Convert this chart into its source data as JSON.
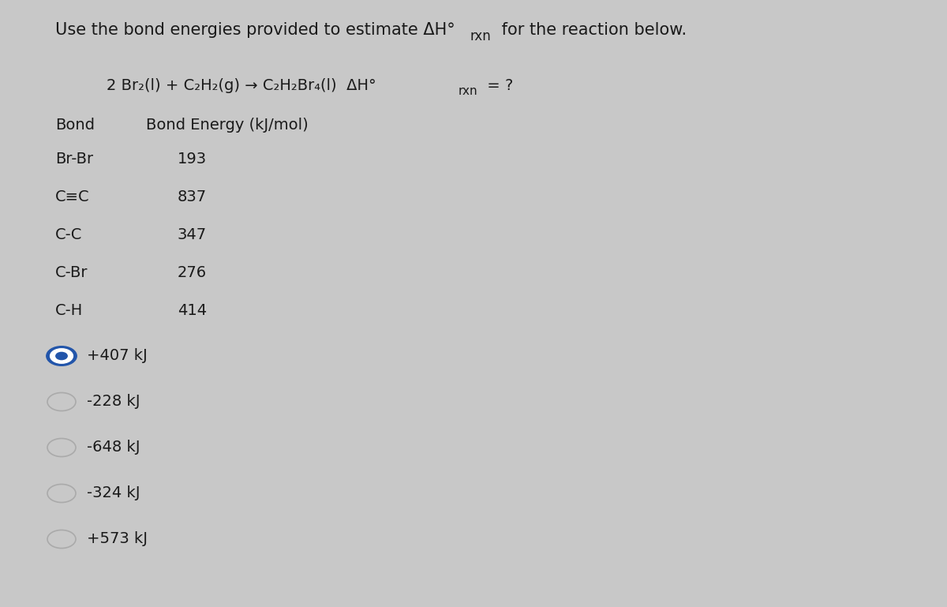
{
  "background_color": "#c8c8c8",
  "font_color": "#1a1a1a",
  "title_main": "Use the bond energies provided to estimate ΔH°",
  "title_sub": "rxn",
  "title_end": " for the reaction below.",
  "rxn_main": "2 Br₂(l) + C₂H₂(g) → C₂H₂Br₄(l)  ΔH°",
  "rxn_sub": "rxn",
  "rxn_end": " = ?",
  "col1_header": "Bond",
  "col2_header": "Bond Energy (kJ/mol)",
  "bonds": [
    "Br-Br",
    "C≡C",
    "C-C",
    "C-Br",
    "C-H"
  ],
  "energies": [
    "193",
    "837",
    "347",
    "276",
    "414"
  ],
  "options": [
    "+407 kJ",
    "-228 kJ",
    "-648 kJ",
    "-324 kJ",
    "+573 kJ"
  ],
  "selected_index": 0,
  "selected_color": "#2255aa",
  "unselected_color": "#aaaaaa",
  "title_fontsize": 15,
  "rxn_fontsize": 14,
  "table_fontsize": 14,
  "opt_fontsize": 14
}
